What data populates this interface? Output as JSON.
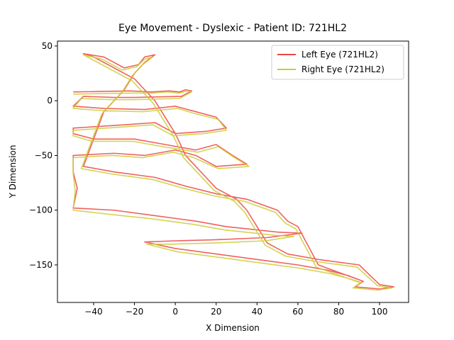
{
  "chart_data": {
    "type": "line",
    "title": "Eye Movement - Dyslexic - Patient ID: 721HL2",
    "x_label": "X Dimension",
    "y_label": "Y Dimension",
    "xlim": [
      -57.7,
      114.2
    ],
    "ylim": [
      -184.3,
      54.5
    ],
    "xticks": [
      {
        "value": -40,
        "label": "−40"
      },
      {
        "value": -20,
        "label": "−20"
      },
      0,
      20,
      40,
      60,
      80,
      100
    ],
    "yticks": [
      {
        "value": -150,
        "label": "−150"
      },
      {
        "value": -100,
        "label": "−100"
      },
      {
        "value": -50,
        "label": "−50"
      },
      0,
      50
    ],
    "legend": "upper right",
    "series": [
      {
        "name": "Left Eye (721HL2)",
        "color": "#ee4444",
        "x": [
          -50,
          -22,
          -12,
          -3,
          2,
          5,
          8,
          3,
          -20,
          -30,
          -45,
          -50,
          -35,
          -15,
          0,
          10,
          20,
          25,
          15,
          0,
          -10,
          -25,
          -50,
          -50,
          -40,
          -20,
          -5,
          10,
          20,
          28,
          35,
          20,
          10,
          0,
          -15,
          -30,
          -50,
          -50,
          -48,
          -50,
          -30,
          -10,
          10,
          25,
          40,
          50,
          62,
          45,
          20,
          0,
          -15,
          0,
          20,
          40,
          60,
          75,
          85,
          92,
          88,
          100,
          107,
          100,
          90,
          70,
          55,
          45,
          40,
          35,
          30,
          20,
          15,
          10,
          5,
          0,
          -5,
          -10,
          -15,
          -20,
          -30,
          -40,
          -45,
          -35,
          -25,
          -18,
          -15,
          -10,
          -15,
          -20,
          -25,
          -30,
          -35,
          -45,
          -30,
          -10,
          5,
          20,
          35,
          50,
          55,
          60,
          70,
          92
        ],
        "values": [
          8,
          9,
          8,
          9,
          8,
          10,
          9,
          4,
          3,
          3,
          4,
          -5,
          -7,
          -8,
          -5,
          -10,
          -15,
          -25,
          -28,
          -30,
          -20,
          -22,
          -25,
          -30,
          -35,
          -35,
          -40,
          -45,
          -40,
          -50,
          -58,
          -60,
          -50,
          -45,
          -50,
          -48,
          -50,
          -65,
          -80,
          -98,
          -100,
          -105,
          -110,
          -115,
          -118,
          -120,
          -121,
          -125,
          -127,
          -128,
          -129,
          -135,
          -140,
          -145,
          -150,
          -155,
          -160,
          -165,
          -170,
          -172,
          -170,
          -168,
          -150,
          -145,
          -140,
          -130,
          -115,
          -100,
          -90,
          -80,
          -70,
          -60,
          -50,
          -30,
          -15,
          0,
          10,
          20,
          30,
          40,
          43,
          40,
          30,
          33,
          40,
          42,
          35,
          25,
          10,
          0,
          -10,
          -60,
          -65,
          -70,
          -78,
          -85,
          -90,
          -100,
          -110,
          -115,
          -150,
          -165
        ]
      },
      {
        "name": "Right Eye (721HL2)",
        "color": "#cccc33",
        "x": [
          -50,
          -23,
          -12,
          -4,
          2,
          6,
          8,
          2,
          -21,
          -31,
          -46,
          -50,
          -36,
          -16,
          1,
          10,
          21,
          25,
          14,
          -1,
          -11,
          -26,
          -50,
          -50,
          -41,
          -21,
          -6,
          11,
          21,
          29,
          36,
          21,
          9,
          -1,
          -16,
          -31,
          -50,
          -50,
          -49,
          -50,
          -31,
          -11,
          9,
          24,
          39,
          49,
          58,
          44,
          19,
          -1,
          -14,
          1,
          21,
          41,
          61,
          76,
          86,
          91,
          87,
          99,
          106,
          99,
          89,
          69,
          54,
          44,
          39,
          34,
          29,
          19,
          14,
          9,
          4,
          -1,
          -6,
          -11,
          -16,
          -21,
          -31,
          -41,
          -45,
          -36,
          -26,
          -19,
          -15,
          -11,
          -16,
          -21,
          -26,
          -31,
          -36,
          -46,
          -31,
          -11,
          4,
          19,
          34,
          49,
          54,
          59,
          69,
          90
        ],
        "values": [
          6,
          7,
          7,
          8,
          7,
          9,
          8,
          2,
          1,
          1,
          2,
          -7,
          -9,
          -10,
          -7,
          -12,
          -17,
          -27,
          -30,
          -32,
          -22,
          -24,
          -27,
          -32,
          -37,
          -37,
          -42,
          -47,
          -42,
          -52,
          -60,
          -62,
          -52,
          -47,
          -52,
          -50,
          -52,
          -67,
          -82,
          -100,
          -104,
          -108,
          -113,
          -118,
          -121,
          -123,
          -124,
          -128,
          -130,
          -131,
          -131,
          -138,
          -143,
          -148,
          -153,
          -158,
          -163,
          -166,
          -171,
          -173,
          -171,
          -169,
          -152,
          -147,
          -142,
          -132,
          -117,
          -102,
          -92,
          -82,
          -72,
          -62,
          -52,
          -32,
          -17,
          -2,
          8,
          18,
          28,
          38,
          42,
          38,
          28,
          31,
          38,
          40,
          33,
          23,
          8,
          -2,
          -12,
          -62,
          -67,
          -72,
          -80,
          -87,
          -92,
          -102,
          -112,
          -117,
          -152,
          -166
        ]
      }
    ]
  }
}
